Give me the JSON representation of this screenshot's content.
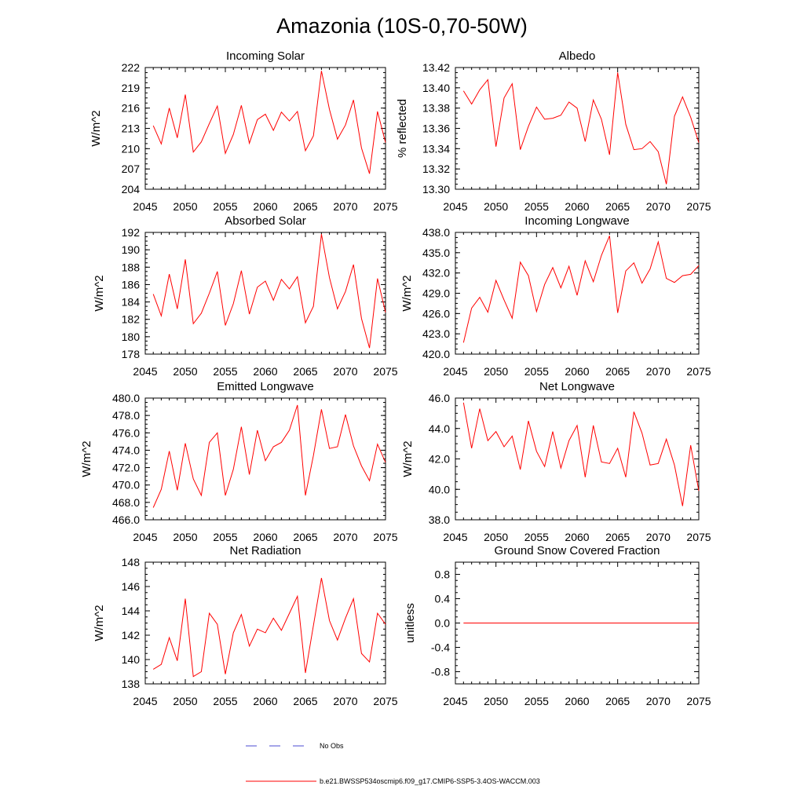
{
  "figure": {
    "title": "Amazonia (10S-0,70-50W)",
    "line_color": "#ff0000",
    "obs_color": "#4b4bd2"
  },
  "legend": {
    "obs_label": "No Obs",
    "model_label": "b.e21.BWSSP534oscmip6.f09_g17.CMIP6-SSP5-3.4OS-WACCM.003"
  },
  "chart_data": [
    {
      "type": "line",
      "title": "Incoming Solar",
      "ylabel": "W/m^2",
      "xlim": [
        2045,
        2075
      ],
      "ylim": [
        204,
        222
      ],
      "x_ticks": [
        "2045",
        "2050",
        "2055",
        "2060",
        "2065",
        "2070",
        "2075"
      ],
      "y_ticks": [
        "204",
        "207",
        "210",
        "213",
        "216",
        "219",
        "222"
      ],
      "x": [
        2046,
        2047,
        2048,
        2049,
        2050,
        2051,
        2052,
        2053,
        2054,
        2055,
        2056,
        2057,
        2058,
        2059,
        2060,
        2061,
        2062,
        2063,
        2064,
        2065,
        2066,
        2067,
        2068,
        2069,
        2070,
        2071,
        2072,
        2073,
        2074,
        2075
      ],
      "values": [
        213.4,
        210.7,
        216.0,
        211.6,
        218.0,
        209.5,
        211.0,
        213.7,
        216.3,
        209.3,
        212.1,
        216.4,
        210.8,
        214.3,
        215.1,
        212.7,
        215.4,
        214.1,
        215.5,
        209.7,
        211.9,
        221.5,
        215.8,
        211.4,
        213.5,
        217.2,
        210.1,
        206.3,
        215.5,
        210.9
      ]
    },
    {
      "type": "line",
      "title": "Albedo",
      "ylabel": "% reflected",
      "xlim": [
        2045,
        2075
      ],
      "ylim": [
        13.3,
        13.42
      ],
      "x_ticks": [
        "2045",
        "2050",
        "2055",
        "2060",
        "2065",
        "2070",
        "2075"
      ],
      "y_ticks": [
        "13.30",
        "13.32",
        "13.34",
        "13.36",
        "13.38",
        "13.40",
        "13.42"
      ],
      "x": [
        2046,
        2047,
        2048,
        2049,
        2050,
        2051,
        2052,
        2053,
        2054,
        2055,
        2056,
        2057,
        2058,
        2059,
        2060,
        2061,
        2062,
        2063,
        2064,
        2065,
        2066,
        2067,
        2068,
        2069,
        2070,
        2071,
        2072,
        2073,
        2074,
        2075
      ],
      "values": [
        13.397,
        13.384,
        13.398,
        13.408,
        13.342,
        13.39,
        13.404,
        13.339,
        13.362,
        13.381,
        13.369,
        13.37,
        13.373,
        13.386,
        13.38,
        13.347,
        13.388,
        13.369,
        13.334,
        13.415,
        13.364,
        13.339,
        13.34,
        13.347,
        13.337,
        13.305,
        13.372,
        13.391,
        13.371,
        13.346
      ]
    },
    {
      "type": "line",
      "title": "Absorbed Solar",
      "ylabel": "W/m^2",
      "xlim": [
        2045,
        2075
      ],
      "ylim": [
        178,
        192
      ],
      "x_ticks": [
        "2045",
        "2050",
        "2055",
        "2060",
        "2065",
        "2070",
        "2075"
      ],
      "y_ticks": [
        "178",
        "180",
        "182",
        "184",
        "186",
        "188",
        "190",
        "192"
      ],
      "x": [
        2046,
        2047,
        2048,
        2049,
        2050,
        2051,
        2052,
        2053,
        2054,
        2055,
        2056,
        2057,
        2058,
        2059,
        2060,
        2061,
        2062,
        2063,
        2064,
        2065,
        2066,
        2067,
        2068,
        2069,
        2070,
        2071,
        2072,
        2073,
        2074,
        2075
      ],
      "values": [
        184.9,
        182.4,
        187.2,
        183.2,
        188.9,
        181.5,
        182.7,
        185.0,
        187.5,
        181.3,
        183.8,
        187.6,
        182.6,
        185.7,
        186.4,
        184.2,
        186.6,
        185.5,
        186.9,
        181.6,
        183.5,
        191.8,
        186.8,
        183.2,
        185.2,
        188.3,
        182.1,
        178.7,
        186.7,
        182.8
      ]
    },
    {
      "type": "line",
      "title": "Incoming Longwave",
      "ylabel": "W/m^2",
      "xlim": [
        2045,
        2075
      ],
      "ylim": [
        420.0,
        438.0
      ],
      "x_ticks": [
        "2045",
        "2050",
        "2055",
        "2060",
        "2065",
        "2070",
        "2075"
      ],
      "y_ticks": [
        "420.0",
        "423.0",
        "426.0",
        "429.0",
        "432.0",
        "435.0",
        "438.0"
      ],
      "x": [
        2046,
        2047,
        2048,
        2049,
        2050,
        2051,
        2052,
        2053,
        2054,
        2055,
        2056,
        2057,
        2058,
        2059,
        2060,
        2061,
        2062,
        2063,
        2064,
        2065,
        2066,
        2067,
        2068,
        2069,
        2070,
        2071,
        2072,
        2073,
        2074,
        2075
      ],
      "values": [
        421.7,
        426.8,
        428.4,
        426.2,
        430.9,
        428.0,
        425.3,
        433.6,
        431.6,
        426.3,
        430.3,
        432.8,
        429.8,
        433.0,
        428.7,
        433.8,
        430.7,
        434.6,
        437.5,
        426.1,
        432.3,
        433.5,
        430.5,
        432.6,
        436.6,
        431.2,
        430.6,
        431.6,
        431.8,
        433.1
      ]
    },
    {
      "type": "line",
      "title": "Emitted Longwave",
      "ylabel": "W/m^2",
      "xlim": [
        2045,
        2075
      ],
      "ylim": [
        466.0,
        480.0
      ],
      "x_ticks": [
        "2045",
        "2050",
        "2055",
        "2060",
        "2065",
        "2070",
        "2075"
      ],
      "y_ticks": [
        "466.0",
        "468.0",
        "470.0",
        "472.0",
        "474.0",
        "476.0",
        "478.0",
        "480.0"
      ],
      "x": [
        2046,
        2047,
        2048,
        2049,
        2050,
        2051,
        2052,
        2053,
        2054,
        2055,
        2056,
        2057,
        2058,
        2059,
        2060,
        2061,
        2062,
        2063,
        2064,
        2065,
        2066,
        2067,
        2068,
        2069,
        2070,
        2071,
        2072,
        2073,
        2074,
        2075
      ],
      "values": [
        467.4,
        469.5,
        473.9,
        469.4,
        474.8,
        470.7,
        468.8,
        474.9,
        476.0,
        468.8,
        471.8,
        476.7,
        471.2,
        476.3,
        472.8,
        474.4,
        474.9,
        476.3,
        479.2,
        468.8,
        473.4,
        478.7,
        474.2,
        474.4,
        478.1,
        474.5,
        472.2,
        470.5,
        474.7,
        472.6
      ]
    },
    {
      "type": "line",
      "title": "Net Longwave",
      "ylabel": "W/m^2",
      "xlim": [
        2045,
        2075
      ],
      "ylim": [
        38.0,
        46.0
      ],
      "x_ticks": [
        "2045",
        "2050",
        "2055",
        "2060",
        "2065",
        "2070",
        "2075"
      ],
      "y_ticks": [
        "38.0",
        "40.0",
        "42.0",
        "44.0",
        "46.0"
      ],
      "x": [
        2046,
        2047,
        2048,
        2049,
        2050,
        2051,
        2052,
        2053,
        2054,
        2055,
        2056,
        2057,
        2058,
        2059,
        2060,
        2061,
        2062,
        2063,
        2064,
        2065,
        2066,
        2067,
        2068,
        2069,
        2070,
        2071,
        2072,
        2073,
        2074,
        2075
      ],
      "values": [
        45.7,
        42.7,
        45.3,
        43.2,
        43.8,
        42.8,
        43.5,
        41.3,
        44.5,
        42.5,
        41.5,
        43.8,
        41.4,
        43.2,
        44.2,
        40.8,
        44.2,
        41.8,
        41.7,
        42.7,
        40.8,
        45.1,
        43.7,
        41.6,
        41.7,
        43.3,
        41.6,
        38.9,
        42.9,
        39.9
      ]
    },
    {
      "type": "line",
      "title": "Net Radiation",
      "ylabel": "W/m^2",
      "xlim": [
        2045,
        2075
      ],
      "ylim": [
        138,
        148
      ],
      "x_ticks": [
        "2045",
        "2050",
        "2055",
        "2060",
        "2065",
        "2070",
        "2075"
      ],
      "y_ticks": [
        "138",
        "140",
        "142",
        "144",
        "146",
        "148"
      ],
      "x": [
        2046,
        2047,
        2048,
        2049,
        2050,
        2051,
        2052,
        2053,
        2054,
        2055,
        2056,
        2057,
        2058,
        2059,
        2060,
        2061,
        2062,
        2063,
        2064,
        2065,
        2066,
        2067,
        2068,
        2069,
        2070,
        2071,
        2072,
        2073,
        2074,
        2075
      ],
      "values": [
        139.2,
        139.6,
        141.8,
        139.9,
        145.0,
        138.6,
        139.0,
        143.8,
        142.9,
        138.8,
        142.2,
        143.7,
        141.1,
        142.5,
        142.2,
        143.4,
        142.4,
        143.8,
        145.2,
        138.9,
        142.8,
        146.7,
        143.2,
        141.6,
        143.4,
        145.0,
        140.5,
        139.8,
        143.8,
        142.9
      ]
    },
    {
      "type": "line",
      "title": "Ground Snow Covered Fraction",
      "ylabel": "unitless",
      "xlim": [
        2045,
        2075
      ],
      "ylim": [
        -1.0,
        1.0
      ],
      "x_ticks": [
        "2045",
        "2050",
        "2055",
        "2060",
        "2065",
        "2070",
        "2075"
      ],
      "y_ticks": [
        "-0.8",
        "-0.4",
        "0.0",
        "0.4",
        "0.8"
      ],
      "x": [
        2046,
        2047,
        2048,
        2049,
        2050,
        2051,
        2052,
        2053,
        2054,
        2055,
        2056,
        2057,
        2058,
        2059,
        2060,
        2061,
        2062,
        2063,
        2064,
        2065,
        2066,
        2067,
        2068,
        2069,
        2070,
        2071,
        2072,
        2073,
        2074,
        2075
      ],
      "values": [
        0.0,
        0.0,
        0.0,
        0.0,
        0.0,
        0.0,
        0.0,
        0.0,
        0.0,
        0.0,
        0.0,
        0.0,
        0.0,
        0.0,
        0.0,
        0.0,
        0.0,
        0.0,
        0.0,
        0.0,
        0.0,
        0.0,
        0.0,
        0.0,
        0.0,
        0.0,
        0.0,
        0.0,
        0.0,
        0.0
      ]
    }
  ]
}
